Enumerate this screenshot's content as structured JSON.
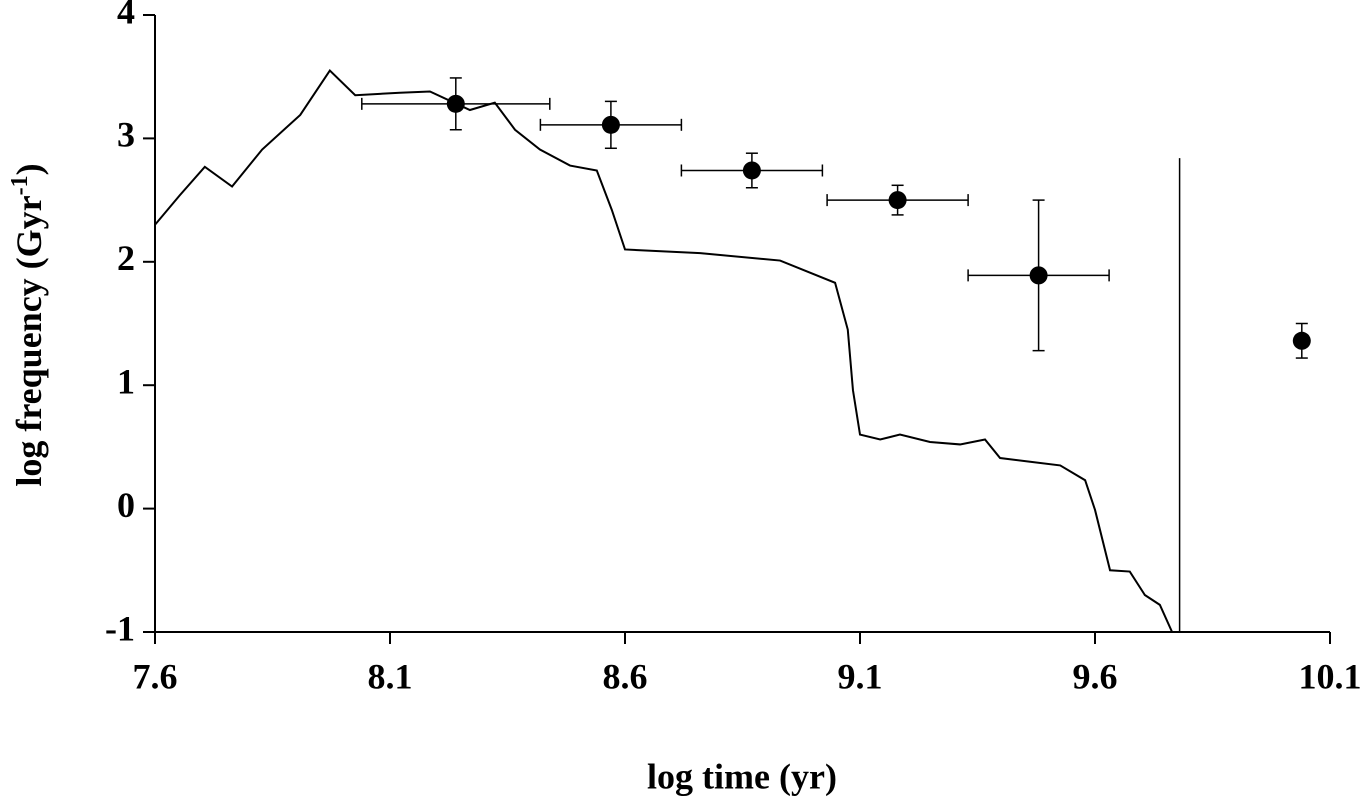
{
  "chart_data": {
    "type": "line-errorbar",
    "x_label": "log time (yr)",
    "y_label": {
      "text": "log frequency (Gyr",
      "sup": "-1",
      "end": ")"
    },
    "xlim": [
      7.6,
      10.1
    ],
    "xticks": [
      7.6,
      8.1,
      8.6,
      9.1,
      9.6,
      10.1
    ],
    "ylim": [
      -1,
      4
    ],
    "yticks": [
      -1,
      0,
      1,
      2,
      3,
      4
    ],
    "line": {
      "color": "#000000",
      "x": [
        7.6,
        7.653,
        7.706,
        7.764,
        7.828,
        7.909,
        7.972,
        8.026,
        8.121,
        8.185,
        8.27,
        8.323,
        8.366,
        8.419,
        8.483,
        8.54,
        8.572,
        8.6,
        8.76,
        8.93,
        9.047,
        9.074,
        9.085,
        9.1,
        9.143,
        9.185,
        9.249,
        9.313,
        9.366,
        9.398,
        9.462,
        9.526,
        9.579,
        9.6,
        9.632,
        9.674,
        9.706,
        9.738,
        9.764
      ],
      "values": [
        2.3,
        2.54,
        2.77,
        2.61,
        2.91,
        3.19,
        3.55,
        3.35,
        3.37,
        3.38,
        3.23,
        3.29,
        3.07,
        2.91,
        2.78,
        2.74,
        2.42,
        2.1,
        2.07,
        2.01,
        1.83,
        1.45,
        0.96,
        0.6,
        0.56,
        0.6,
        0.54,
        0.52,
        0.56,
        0.41,
        0.38,
        0.35,
        0.23,
        -0.01,
        -0.5,
        -0.51,
        -0.7,
        -0.78,
        -1.0
      ]
    },
    "points": {
      "color": "#000000",
      "x": [
        8.24,
        8.57,
        8.87,
        9.18,
        9.48,
        10.04
      ],
      "values": [
        3.28,
        3.11,
        2.74,
        2.5,
        1.89,
        1.36
      ],
      "xerr": [
        0.2,
        0.15,
        0.15,
        0.15,
        0.15,
        0
      ],
      "yerr": [
        0.21,
        0.19,
        0.14,
        0.12,
        0.61,
        0.14
      ]
    },
    "vlines": {
      "x": [
        9.78
      ],
      "ymax": [
        2.84
      ]
    }
  }
}
